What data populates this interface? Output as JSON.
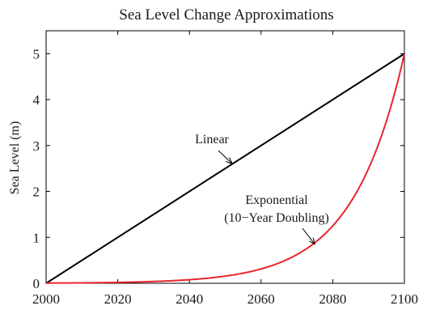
{
  "chart_data": {
    "type": "line",
    "title": "Sea Level Change Approximations",
    "xlabel": "",
    "ylabel": "Sea Level (m)",
    "xlim": [
      2000,
      2100
    ],
    "ylim": [
      0,
      5.5
    ],
    "xticks": [
      2000,
      2020,
      2040,
      2060,
      2080,
      2100
    ],
    "yticks": [
      0,
      1,
      2,
      3,
      4,
      5
    ],
    "grid": false,
    "series": [
      {
        "color": "#000000",
        "model": "linear",
        "x": [
          2000,
          2100
        ],
        "y": [
          0,
          5
        ]
      },
      {
        "color": "#e8262c",
        "model": "exponential",
        "x": [
          2000,
          2010,
          2020,
          2030,
          2040,
          2050,
          2060,
          2070,
          2080,
          2090,
          2100
        ],
        "y": [
          0.005,
          0.01,
          0.02,
          0.04,
          0.08,
          0.16,
          0.31,
          0.63,
          1.25,
          2.5,
          5
        ]
      }
    ],
    "annotations": [
      {
        "lines": [
          "Linear"
        ],
        "at": [
          2052,
          2.6
        ]
      },
      {
        "lines": [
          "Exponential",
          "(10−Year Doubling)"
        ],
        "at": [
          2075,
          0.85
        ]
      }
    ]
  }
}
